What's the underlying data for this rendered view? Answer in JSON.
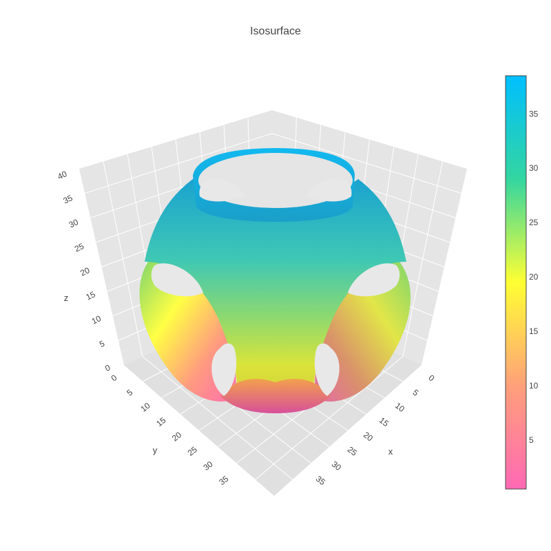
{
  "chart_data": {
    "type": "isosurface",
    "title": "Isosurface",
    "axes": {
      "x": {
        "label": "x",
        "range": [
          0,
          40
        ],
        "ticks": [
          0,
          5,
          10,
          15,
          20,
          25,
          30,
          35
        ]
      },
      "y": {
        "label": "y",
        "range": [
          0,
          40
        ],
        "ticks": [
          0,
          5,
          10,
          15,
          20,
          25,
          30,
          35
        ]
      },
      "z": {
        "label": "z",
        "range": [
          0,
          40
        ],
        "ticks": [
          0,
          5,
          10,
          15,
          20,
          25,
          30,
          35,
          40
        ]
      }
    },
    "colorbar": {
      "range": [
        0.5,
        38.5
      ],
      "ticks": [
        5,
        10,
        15,
        20,
        25,
        30,
        35
      ],
      "colorscale": [
        [
          0.0,
          "#ff69b4"
        ],
        [
          0.25,
          "#ffa07a"
        ],
        [
          0.5,
          "#ffff33"
        ],
        [
          0.75,
          "#33d6a0"
        ],
        [
          1.0,
          "#00bfff"
        ]
      ]
    },
    "grid": true,
    "background": "#e5e5e5"
  }
}
